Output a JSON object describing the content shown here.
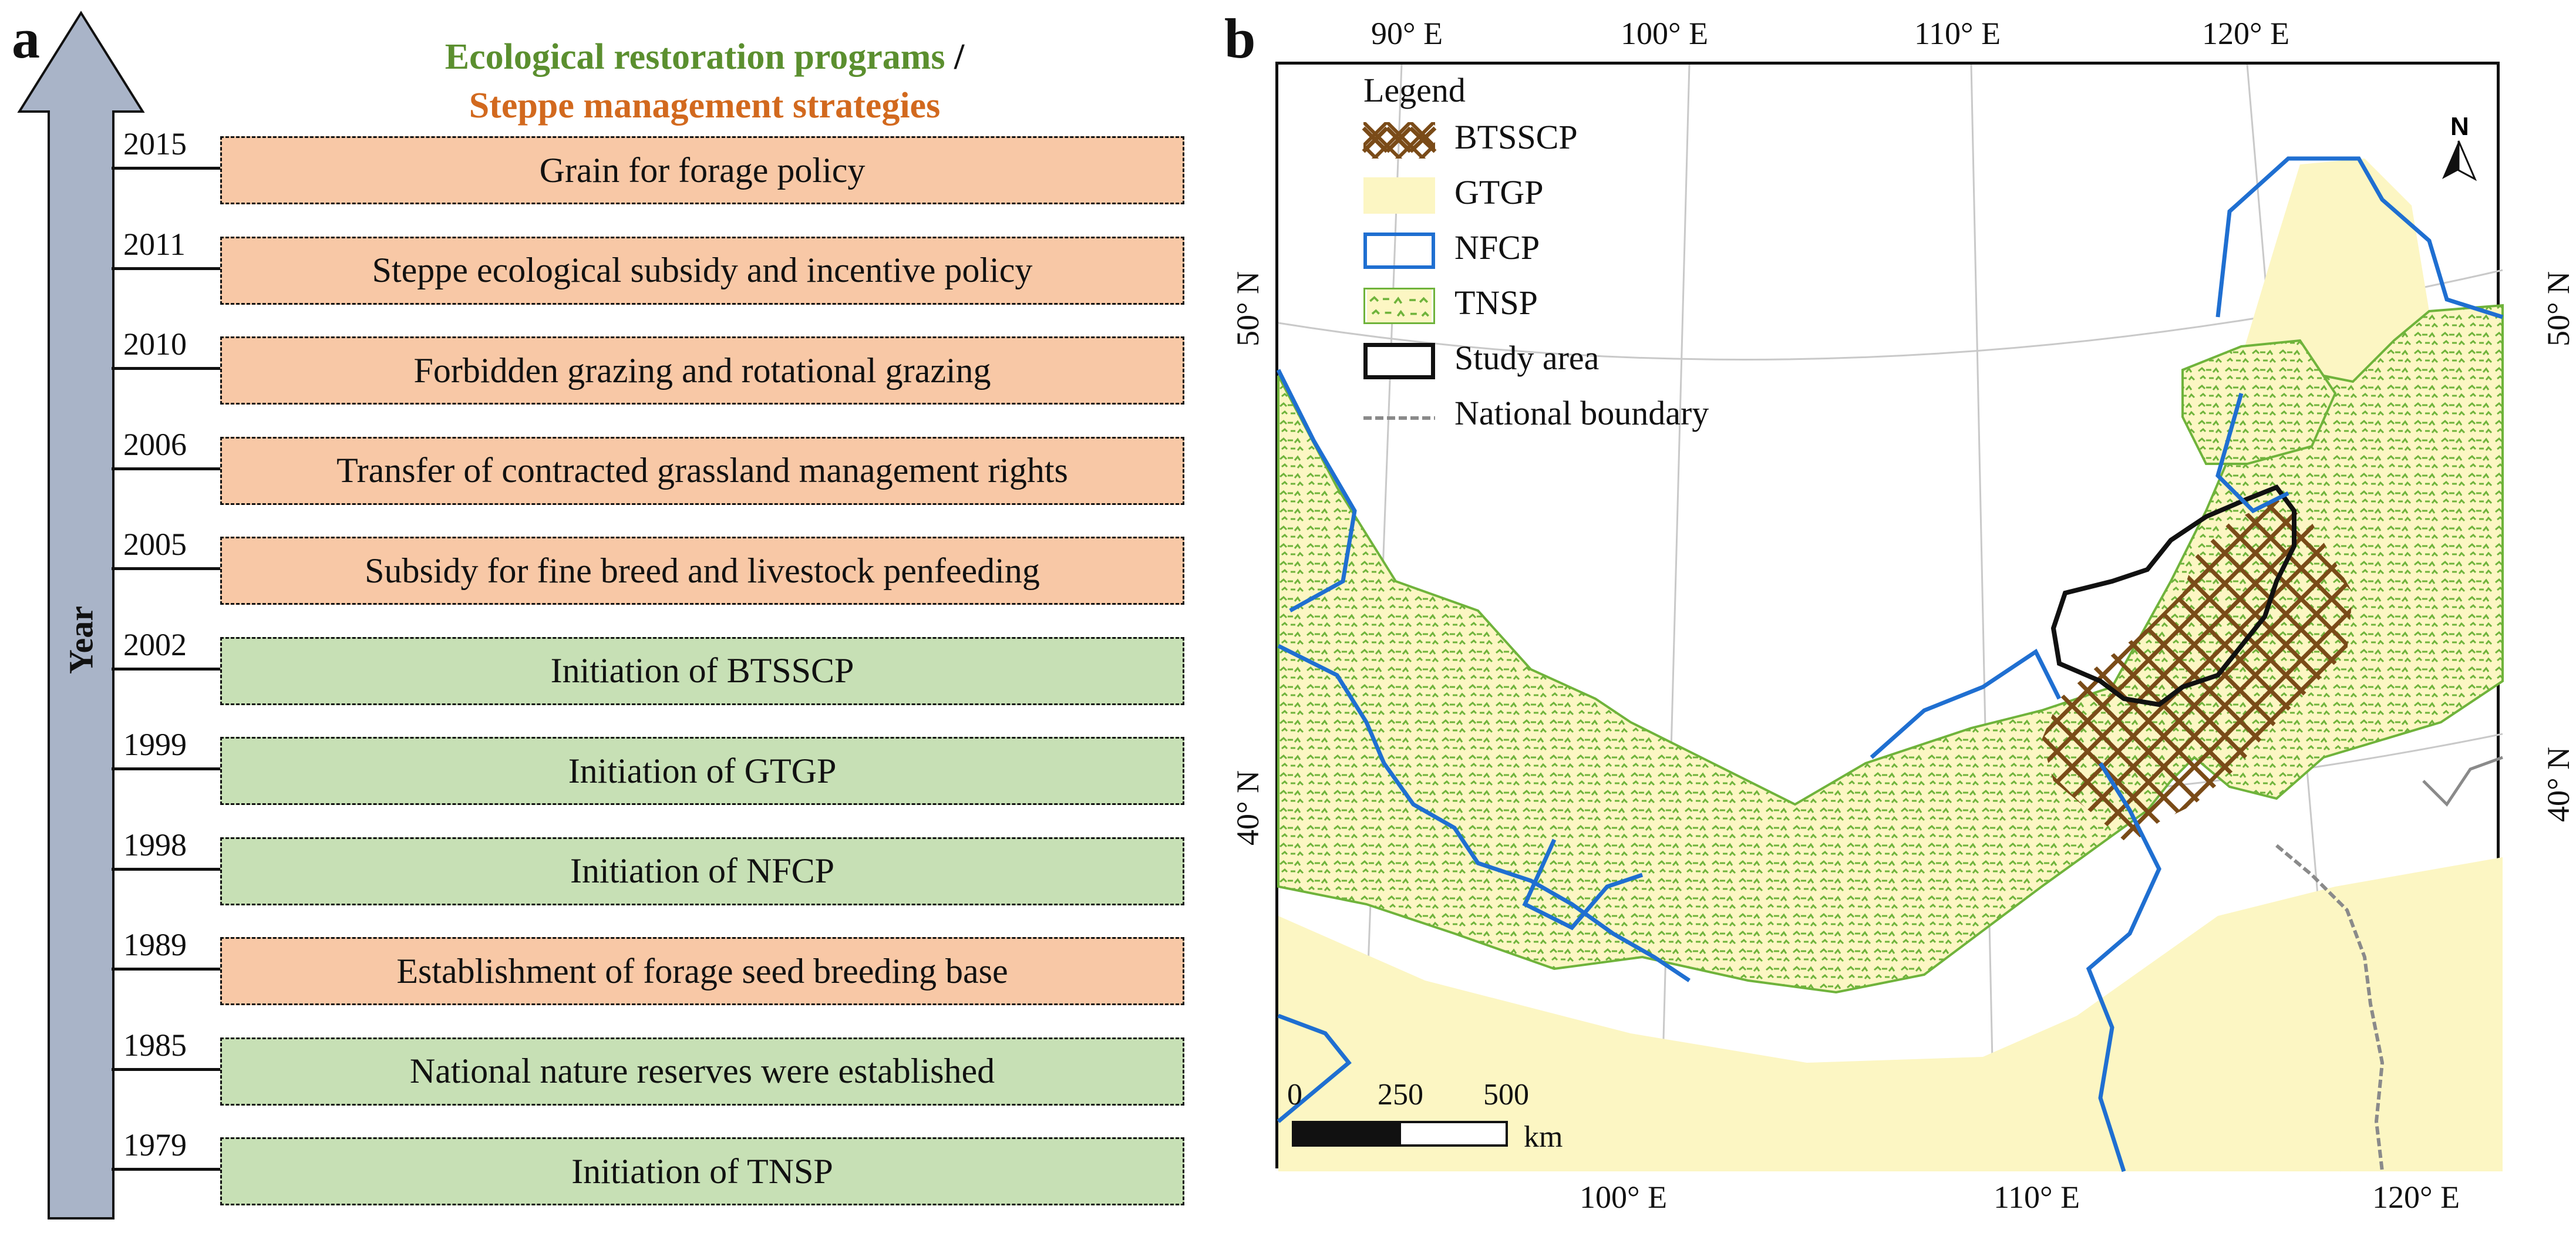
{
  "panel_a": {
    "letter": "a",
    "header_eco": "Ecological restoration programs",
    "header_sep": "/",
    "header_steppe": "Steppe management strategies",
    "axis_label": "Year",
    "timeline": [
      {
        "year": "2015",
        "label": "Grain for forage policy",
        "kind": "steppe"
      },
      {
        "year": "2011",
        "label": "Steppe ecological subsidy and incentive policy",
        "kind": "steppe"
      },
      {
        "year": "2010",
        "label": "Forbidden grazing and rotational grazing",
        "kind": "steppe"
      },
      {
        "year": "2006",
        "label": "Transfer of contracted grassland management rights",
        "kind": "steppe"
      },
      {
        "year": "2005",
        "label": "Subsidy for fine breed and livestock penfeeding",
        "kind": "steppe"
      },
      {
        "year": "2002",
        "label": "Initiation of BTSSCP",
        "kind": "eco"
      },
      {
        "year": "1999",
        "label": "Initiation of GTGP",
        "kind": "eco"
      },
      {
        "year": "1998",
        "label": "Initiation of NFCP",
        "kind": "eco"
      },
      {
        "year": "1989",
        "label": "Establishment of forage seed breeding base",
        "kind": "steppe"
      },
      {
        "year": "1985",
        "label": "National nature reserves were established",
        "kind": "eco"
      },
      {
        "year": "1979",
        "label": "Initiation of TNSP",
        "kind": "eco"
      }
    ]
  },
  "panel_b": {
    "letter": "b",
    "top_ticks": [
      "90° E",
      "100° E",
      "110° E",
      "120° E"
    ],
    "bottom_ticks": [
      "100° E",
      "110° E",
      "120° E"
    ],
    "left_ticks": [
      "50° N",
      "40° N"
    ],
    "right_ticks": [
      "50° N",
      "40° N"
    ],
    "north_label": "N",
    "legend": {
      "title": "Legend",
      "items": [
        {
          "key": "btsscp",
          "label": "BTSSCP"
        },
        {
          "key": "gtgp",
          "label": "GTGP"
        },
        {
          "key": "nfcp",
          "label": "NFCP"
        },
        {
          "key": "tnsp",
          "label": "TNSP"
        },
        {
          "key": "study",
          "label": "Study area"
        },
        {
          "key": "boundary",
          "label": "National boundary"
        }
      ]
    },
    "scale": {
      "ticks": [
        "0",
        "250",
        "500"
      ],
      "unit": "km"
    }
  },
  "colors": {
    "steppe_fill": "#f8c8a6",
    "eco_fill": "#c7e0b5",
    "eco_text": "#5b8f2f",
    "steppe_text": "#d2691e",
    "arrow_fill": "#a9b4c8",
    "gtgp": "#fcf6c3",
    "tnsp": "#6fb33b",
    "nfcp": "#1f6fd1",
    "btsscp": "#7a4b18",
    "study_area": "#111111",
    "boundary": "#8a8a8a"
  }
}
